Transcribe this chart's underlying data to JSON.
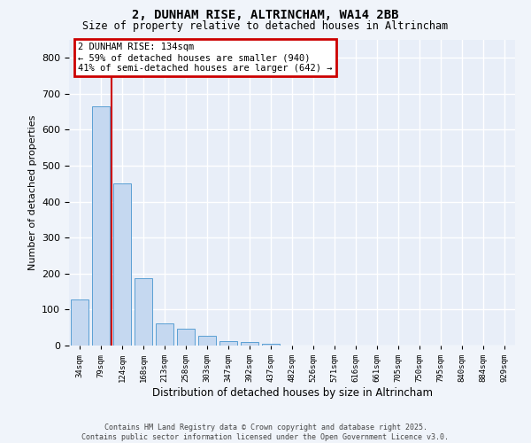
{
  "title": "2, DUNHAM RISE, ALTRINCHAM, WA14 2BB",
  "subtitle": "Size of property relative to detached houses in Altrincham",
  "xlabel": "Distribution of detached houses by size in Altrincham",
  "ylabel": "Number of detached properties",
  "categories": [
    "34sqm",
    "79sqm",
    "124sqm",
    "168sqm",
    "213sqm",
    "258sqm",
    "303sqm",
    "347sqm",
    "392sqm",
    "437sqm",
    "482sqm",
    "526sqm",
    "571sqm",
    "616sqm",
    "661sqm",
    "705sqm",
    "750sqm",
    "795sqm",
    "840sqm",
    "884sqm",
    "929sqm"
  ],
  "values": [
    128,
    665,
    452,
    188,
    62,
    47,
    26,
    13,
    10,
    5,
    0,
    0,
    0,
    0,
    0,
    0,
    0,
    0,
    0,
    0,
    0
  ],
  "bar_color": "#c5d8f0",
  "bar_edge_color": "#5a9fd4",
  "annotation_title": "2 DUNHAM RISE: 134sqm",
  "annotation_line1": "← 59% of detached houses are smaller (940)",
  "annotation_line2": "41% of semi-detached houses are larger (642) →",
  "annotation_box_color": "#ffffff",
  "annotation_box_edge": "#cc0000",
  "footnote1": "Contains HM Land Registry data © Crown copyright and database right 2025.",
  "footnote2": "Contains public sector information licensed under the Open Government Licence v3.0.",
  "bg_color": "#f0f4fa",
  "plot_bg_color": "#e8eef8",
  "grid_color": "#ffffff",
  "ylim": [
    0,
    850
  ],
  "yticks": [
    0,
    100,
    200,
    300,
    400,
    500,
    600,
    700,
    800
  ],
  "red_line_x": 1.5
}
